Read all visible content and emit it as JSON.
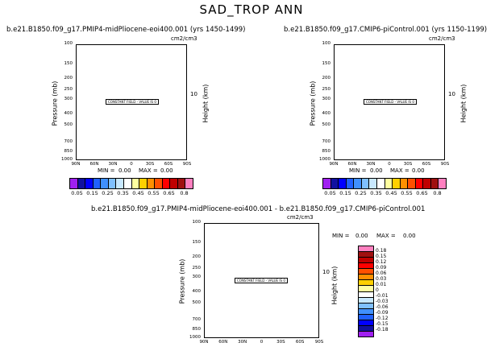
{
  "title": "SAD_TROP ANN",
  "units": "cm2/cm3",
  "constant_field": "CONSTANT FIELD - VALUE IS 0",
  "panels": [
    {
      "title": "b.e21.B1850.f09_g17.PMIP4-midPliocene-eoi400.001 (yrs 1450-1499)",
      "min_label": "MIN =",
      "min_value": "0.00",
      "max_label": "MAX =",
      "max_value": "0.00"
    },
    {
      "title": "b.e21.B1850.f09_g17.CMIP6-piControl.001 (yrs 1150-1199)",
      "min_label": "MIN =",
      "min_value": "0.00",
      "max_label": "MAX =",
      "max_value": "0.00"
    },
    {
      "title": "b.e21.B1850.f09_g17.PMIP4-midPliocene-eoi400.001 - b.e21.B1850.f09_g17.CMIP6-piControl.001",
      "min_label": "MIN =",
      "min_value": "0.00",
      "max_label": "MAX =",
      "max_value": "0.00"
    }
  ],
  "chart_data": {
    "type": "heatmap",
    "xlabel": "",
    "ylabel": "Pressure (mb)",
    "ylabel_right": "Height (km)",
    "x_ticks": [
      "90N",
      "60N",
      "30N",
      "0",
      "30S",
      "60S",
      "90S"
    ],
    "y_ticks": [
      "100",
      "150",
      "200",
      "250",
      "300",
      "400",
      "500",
      "700",
      "850",
      "1000"
    ],
    "y_scale": "log",
    "ylim": [
      1000,
      100
    ],
    "right_ticks": [
      "10"
    ],
    "field_value": 0,
    "colorbar_abs": {
      "labels": [
        "0.05",
        "0.1",
        "0.15",
        "0.2",
        "0.25",
        "0.3",
        "0.35",
        "0.4",
        "0.45",
        "0.5",
        "0.55",
        "0.6",
        "0.65",
        "0.7",
        "0.8"
      ],
      "colors": [
        "#a020f0",
        "#1010a0",
        "#0000ff",
        "#2060ff",
        "#4090ff",
        "#80c0ff",
        "#c8e8ff",
        "#ffffff",
        "#ffffa0",
        "#ffd000",
        "#ff9000",
        "#ff5000",
        "#ff0000",
        "#c00000",
        "#a01010",
        "#ff80c0"
      ]
    },
    "colorbar_diff": {
      "labels": [
        "0.18",
        "0.15",
        "0.12",
        "0.09",
        "0.06",
        "0.03",
        "0.01",
        "0",
        "-0.01",
        "-0.03",
        "-0.06",
        "-0.09",
        "-0.12",
        "-0.15",
        "-0.18"
      ],
      "colors": [
        "#ff80c0",
        "#a01010",
        "#c00000",
        "#ff0000",
        "#ff5000",
        "#ff9000",
        "#ffd000",
        "#ffffa0",
        "#ffffff",
        "#c8e8ff",
        "#80c0ff",
        "#4090ff",
        "#2060ff",
        "#0000ff",
        "#1010a0",
        "#a020f0"
      ]
    }
  }
}
